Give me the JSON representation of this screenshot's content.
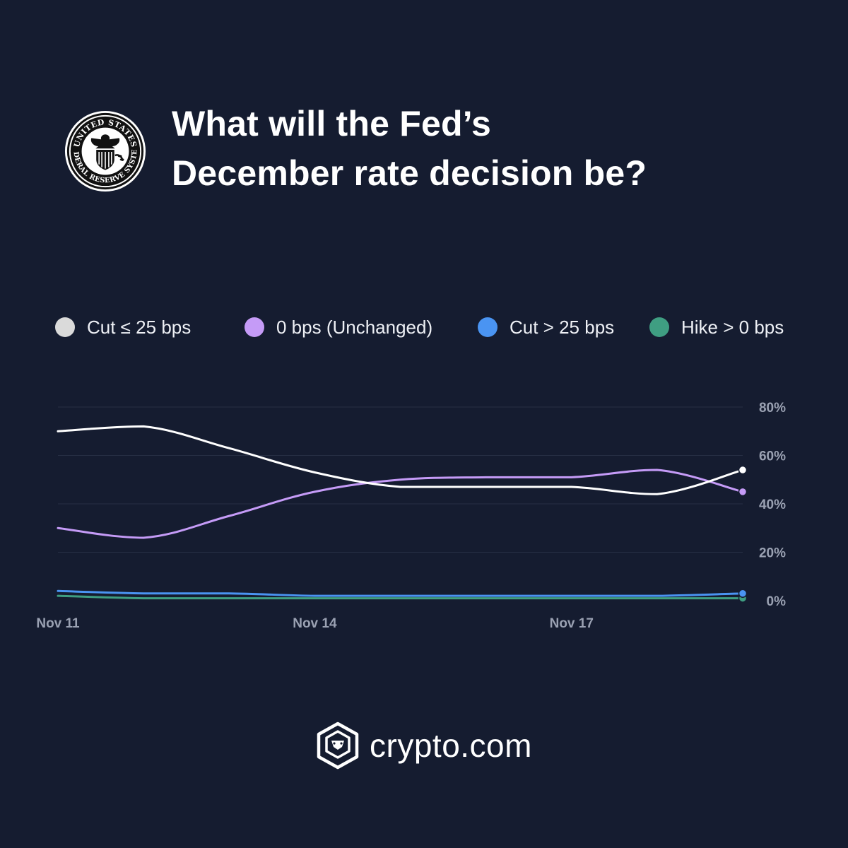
{
  "header": {
    "title_line1": "What will the Fed’s",
    "title_line2": "December rate decision be?",
    "seal_text_top": "UNITED STATES",
    "seal_text_bottom": "FEDERAL RESERVE SYSTEM"
  },
  "colors": {
    "background": "#151c30",
    "cut_le_25": "#ffffff",
    "unchanged": "#c59bf7",
    "cut_gt_25": "#4a94f2",
    "hike": "#3f9e82",
    "grid": "#262e44",
    "tick": "#9aa1b2"
  },
  "legend": [
    {
      "label": "Cut ≤ 25 bps",
      "color": "#dadada"
    },
    {
      "label": "0 bps (Unchanged)",
      "color": "#c59bf7"
    },
    {
      "label": "Cut > 25 bps",
      "color": "#4a94f2"
    },
    {
      "label": "Hike > 0 bps",
      "color": "#3f9e82"
    }
  ],
  "chart_data": {
    "type": "line",
    "x": [
      "Nov 11",
      "Nov 12",
      "Nov 13",
      "Nov 14",
      "Nov 15",
      "Nov 16",
      "Nov 17",
      "Nov 18",
      "Nov 19"
    ],
    "x_tick_labels": [
      "Nov 11",
      "Nov 14",
      "Nov 17"
    ],
    "y_tick_labels": [
      "80%",
      "60%",
      "40%",
      "20%",
      "0%"
    ],
    "ylim": [
      0,
      80
    ],
    "grid": true,
    "legend_position": "top",
    "series": [
      {
        "name": "Cut ≤ 25 bps",
        "color": "#ffffff",
        "values": [
          70,
          72,
          63,
          53,
          47,
          47,
          47,
          44,
          54
        ]
      },
      {
        "name": "0 bps (Unchanged)",
        "color": "#c59bf7",
        "values": [
          30,
          26,
          35,
          45,
          50,
          51,
          51,
          54,
          45
        ]
      },
      {
        "name": "Cut > 25 bps",
        "color": "#4a94f2",
        "values": [
          4,
          3,
          3,
          2,
          2,
          2,
          2,
          2,
          3
        ]
      },
      {
        "name": "Hike > 0 bps",
        "color": "#3f9e82",
        "values": [
          2,
          1,
          1,
          1,
          1,
          1,
          1,
          1,
          1
        ]
      }
    ]
  },
  "footer": {
    "brand": "crypto.com"
  }
}
